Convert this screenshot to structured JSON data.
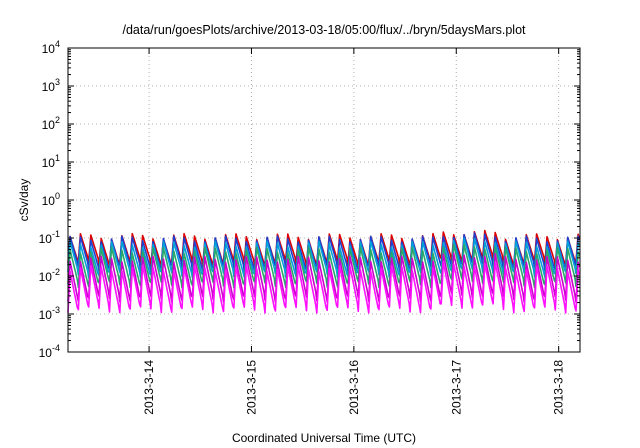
{
  "chart_data": {
    "type": "line",
    "title": "/data/run/goesPlots/archive/2013-03-18/05:00/flux/../bryn/5daysMars.plot",
    "xlabel": "Coordinated Universal Time (UTC)",
    "ylabel": "cSv/day",
    "yscale": "log",
    "ylim": [
      0.0001,
      10000
    ],
    "xlim": [
      "2013-03-13 05:00",
      "2013-03-18 05:00"
    ],
    "grid": true,
    "legend": "none",
    "y_ticks": [
      {
        "base": "10",
        "exp": "-4",
        "value": 0.0001
      },
      {
        "base": "10",
        "exp": "-3",
        "value": 0.001
      },
      {
        "base": "10",
        "exp": "-2",
        "value": 0.01
      },
      {
        "base": "10",
        "exp": "-1",
        "value": 0.1
      },
      {
        "base": "10",
        "exp": "0",
        "value": 1
      },
      {
        "base": "10",
        "exp": "1",
        "value": 10
      },
      {
        "base": "10",
        "exp": "2",
        "value": 100
      },
      {
        "base": "10",
        "exp": "3",
        "value": 1000
      },
      {
        "base": "10",
        "exp": "4",
        "value": 10000
      }
    ],
    "x_ticks": [
      {
        "label": "2013-3-14",
        "date": "2013-03-14 00:00"
      },
      {
        "label": "2013-3-15",
        "date": "2013-03-15 00:00"
      },
      {
        "label": "2013-3-16",
        "date": "2013-03-16 00:00"
      },
      {
        "label": "2013-3-17",
        "date": "2013-03-17 00:00"
      },
      {
        "label": "2013-3-18",
        "date": "2013-03-18 00:00"
      }
    ],
    "pattern": {
      "period_hours": 2.43,
      "description": "sawtooth: sharp rise then decay each cycle"
    },
    "series": [
      {
        "color": "#dd0000",
        "peak": 0.11,
        "trough": 0.022
      },
      {
        "color": "#1f3fd0",
        "peak": 0.095,
        "trough": 0.016
      },
      {
        "color": "#00a0d8",
        "peak": 0.07,
        "trough": 0.011
      },
      {
        "color": "#2aa86a",
        "peak": 0.048,
        "trough": 0.006
      },
      {
        "color": "#cc00cc",
        "peak": 0.028,
        "trough": 0.0025
      },
      {
        "color": "#ff10ff",
        "peak": 0.016,
        "trough": 0.0013
      }
    ]
  }
}
